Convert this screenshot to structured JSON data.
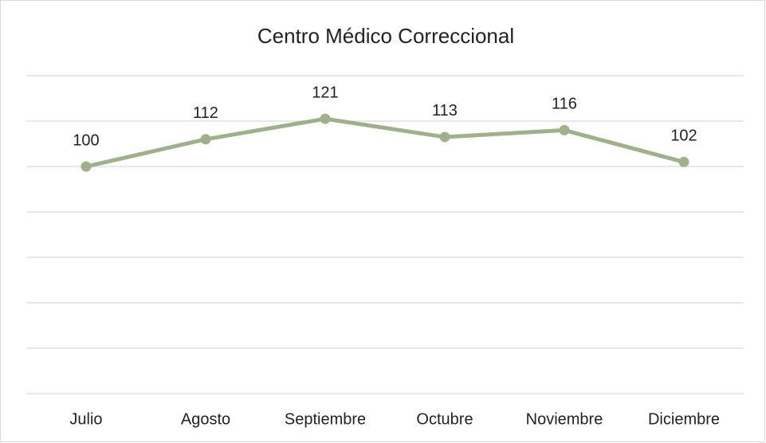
{
  "chart_data": {
    "type": "line",
    "title": "Centro Médico Correccional",
    "categories": [
      "Julio",
      "Agosto",
      "Septiembre",
      "Octubre",
      "Noviembre",
      "Diciembre"
    ],
    "values": [
      100,
      112,
      121,
      113,
      116,
      102
    ],
    "color": "#9fb08b",
    "ylim": [
      0,
      140
    ],
    "yticks": [
      0,
      20,
      40,
      60,
      80,
      100,
      120,
      140
    ],
    "grid": true
  }
}
